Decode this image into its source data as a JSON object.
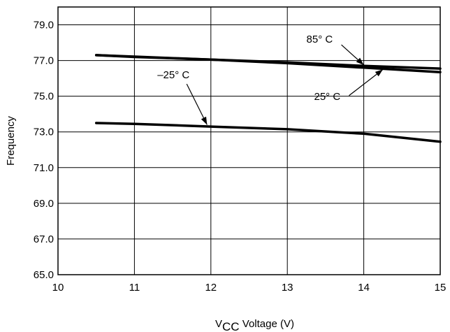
{
  "chart_data": {
    "type": "line",
    "xlabel": "V",
    "xlabel_sub": "CC",
    "xlabel_rest": " Voltage (V)",
    "ylabel": "Frequency",
    "xlim": [
      10,
      15
    ],
    "ylim": [
      65,
      80
    ],
    "x_ticks": [
      10,
      11,
      12,
      13,
      14,
      15
    ],
    "x_tick_labels": [
      "10",
      "11",
      "12",
      "13",
      "14",
      "15"
    ],
    "y_ticks": [
      65,
      67,
      69,
      71,
      73,
      75,
      77,
      79
    ],
    "y_tick_labels": [
      "65.0",
      "67.0",
      "69.0",
      "71.0",
      "73.0",
      "75.0",
      "77.0",
      "79.0"
    ],
    "grid": true,
    "series": [
      {
        "name": "85° C",
        "x": [
          10.5,
          11,
          12,
          13,
          14,
          15
        ],
        "y": [
          77.3,
          77.22,
          77.05,
          76.9,
          76.7,
          76.55
        ],
        "label": {
          "text": "85° C",
          "at": [
            13.25,
            78.0
          ],
          "arrow_to": [
            14.0,
            76.75
          ]
        }
      },
      {
        "name": "25° C",
        "x": [
          10.5,
          11,
          12,
          13,
          14,
          15
        ],
        "y": [
          77.3,
          77.2,
          77.05,
          76.85,
          76.6,
          76.35
        ],
        "label": {
          "text": "25° C",
          "at": [
            13.35,
            74.8
          ],
          "arrow_to": [
            14.25,
            76.5
          ]
        }
      },
      {
        "name": "–25° C",
        "x": [
          10.5,
          11,
          12,
          13,
          14,
          15
        ],
        "y": [
          73.5,
          73.45,
          73.3,
          73.15,
          72.9,
          72.45
        ],
        "label": {
          "text": "–25° C",
          "at": [
            11.3,
            76.0
          ],
          "arrow_to": [
            11.95,
            73.4
          ]
        }
      }
    ]
  }
}
